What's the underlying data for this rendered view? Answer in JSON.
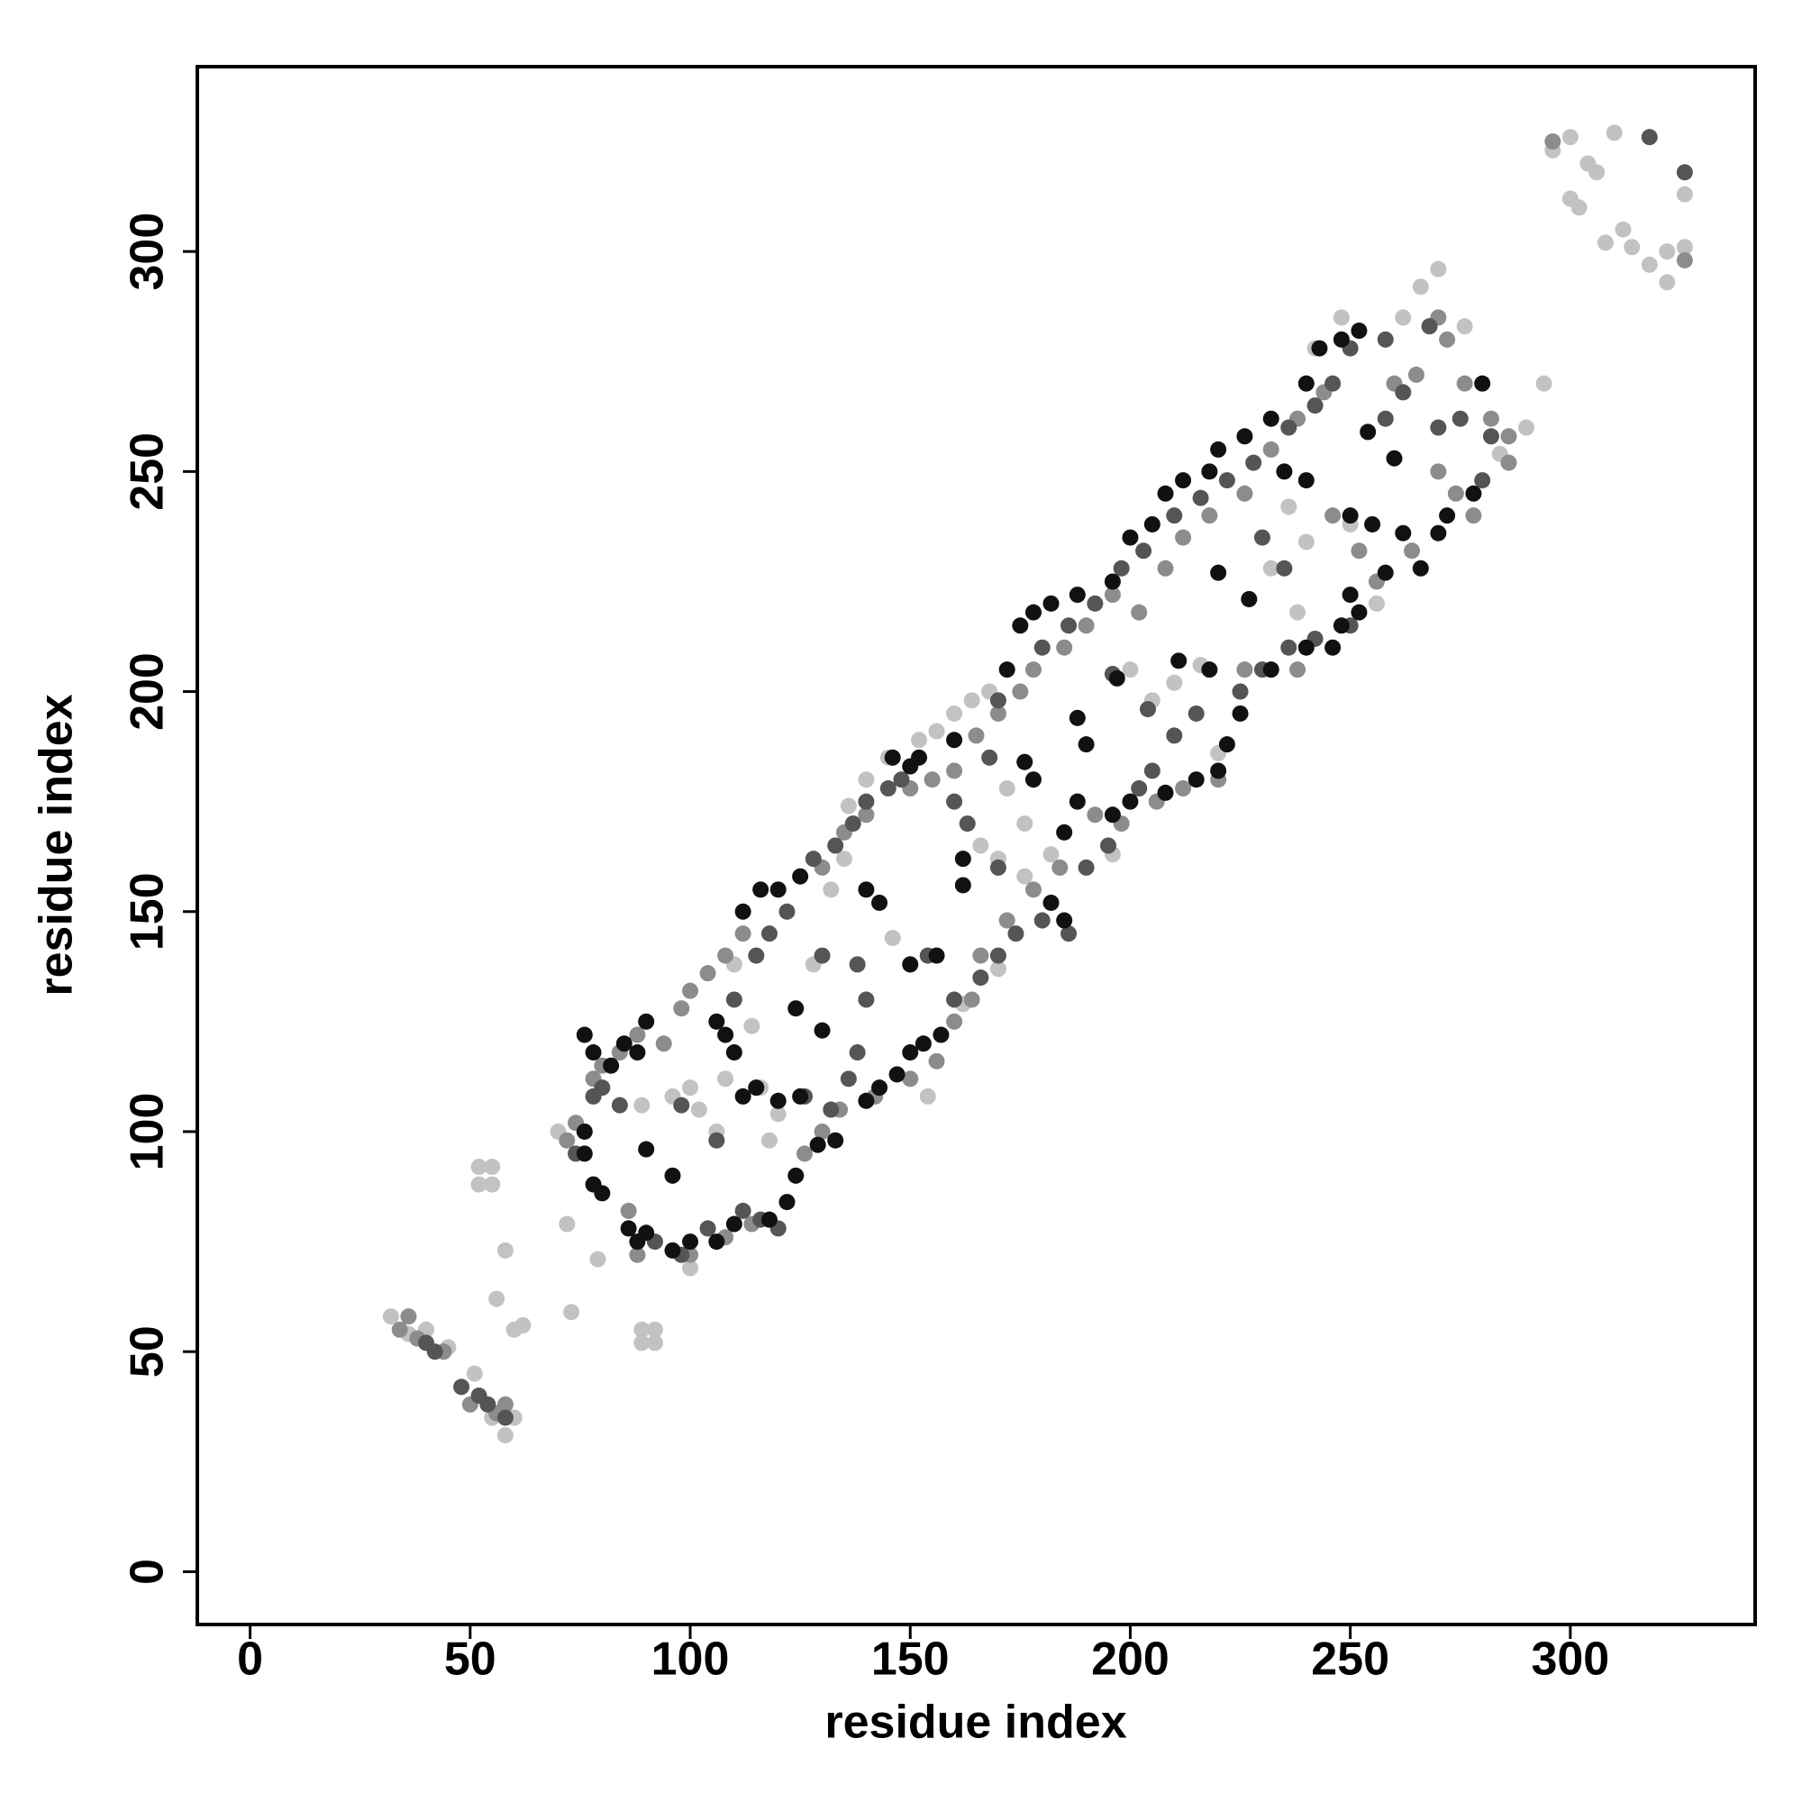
{
  "chart_data": {
    "type": "scatter",
    "xlabel": "residue index",
    "ylabel": "residue index",
    "xlim": [
      -12,
      342
    ],
    "ylim": [
      -12,
      342
    ],
    "xticks": [
      0,
      50,
      100,
      150,
      200,
      250,
      300
    ],
    "yticks": [
      0,
      50,
      100,
      150,
      200,
      250,
      300
    ],
    "grid": false,
    "series": [
      {
        "color": "#c2c2c2",
        "x": [
          32,
          36,
          40,
          45,
          51,
          55,
          58,
          60,
          52,
          55,
          52,
          55,
          89,
          92,
          89,
          92,
          56,
          58,
          62,
          60,
          70,
          72,
          73,
          79,
          89,
          96,
          100,
          102,
          106,
          108,
          116,
          120,
          128,
          132,
          135,
          136,
          140,
          145,
          152,
          156,
          160,
          164,
          168,
          172,
          176,
          166,
          170,
          200,
          205,
          210,
          216,
          232,
          236,
          240,
          250,
          256,
          262,
          266,
          270,
          276,
          284,
          290,
          294,
          300,
          302,
          304,
          306,
          308,
          312,
          314,
          318,
          322,
          326,
          326,
          296,
          300,
          310,
          322,
          100,
          118,
          114,
          110,
          146,
          154,
          162,
          170,
          176,
          182,
          196,
          220,
          238,
          242,
          248
        ],
        "values": [
          58,
          54,
          55,
          51,
          45,
          35,
          31,
          35,
          92,
          92,
          88,
          88,
          55,
          55,
          52,
          52,
          62,
          73,
          56,
          55,
          100,
          79,
          59,
          71,
          106,
          108,
          110,
          105,
          100,
          112,
          110,
          104,
          138,
          155,
          162,
          174,
          180,
          185,
          189,
          191,
          195,
          198,
          200,
          178,
          170,
          165,
          162,
          205,
          198,
          202,
          206,
          228,
          242,
          234,
          238,
          220,
          285,
          292,
          296,
          283,
          254,
          260,
          270,
          312,
          310,
          320,
          318,
          302,
          305,
          301,
          297,
          293,
          301,
          313,
          323,
          326,
          327,
          300,
          69,
          98,
          124,
          138,
          144,
          108,
          129,
          137,
          158,
          163,
          163,
          186,
          218,
          278,
          285
        ]
      },
      {
        "color": "#8c8c8c",
        "x": [
          34,
          36,
          38,
          44,
          50,
          56,
          58,
          296,
          326,
          72,
          74,
          78,
          80,
          84,
          88,
          94,
          98,
          100,
          104,
          108,
          112,
          86,
          88,
          100,
          108,
          114,
          126,
          130,
          134,
          142,
          150,
          156,
          160,
          164,
          130,
          135,
          140,
          150,
          155,
          160,
          165,
          170,
          175,
          178,
          185,
          190,
          196,
          202,
          208,
          212,
          218,
          226,
          232,
          238,
          244,
          260,
          265,
          270,
          272,
          276,
          282,
          286,
          192,
          198,
          206,
          212,
          220,
          226,
          238,
          256,
          264,
          286,
          166,
          172,
          178,
          184,
          246,
          252,
          270,
          274,
          278
        ],
        "values": [
          55,
          58,
          53,
          50,
          38,
          36,
          38,
          325,
          298,
          98,
          102,
          112,
          115,
          118,
          122,
          120,
          128,
          132,
          136,
          140,
          145,
          82,
          72,
          72,
          76,
          79,
          95,
          100,
          105,
          108,
          112,
          116,
          125,
          130,
          160,
          168,
          172,
          178,
          180,
          182,
          190,
          195,
          200,
          205,
          210,
          215,
          222,
          218,
          228,
          235,
          240,
          245,
          255,
          262,
          268,
          270,
          272,
          285,
          280,
          270,
          262,
          258,
          172,
          170,
          175,
          178,
          180,
          205,
          205,
          225,
          232,
          252,
          140,
          148,
          155,
          160,
          240,
          232,
          250,
          245,
          240
        ]
      },
      {
        "color": "#555555",
        "x": [
          40,
          42,
          48,
          52,
          54,
          58,
          318,
          326,
          74,
          78,
          80,
          84,
          92,
          98,
          104,
          112,
          116,
          120,
          126,
          132,
          136,
          138,
          138,
          130,
          110,
          115,
          118,
          122,
          128,
          133,
          137,
          140,
          145,
          148,
          154,
          160,
          166,
          170,
          174,
          180,
          186,
          190,
          195,
          202,
          205,
          210,
          215,
          225,
          230,
          236,
          242,
          250,
          160,
          163,
          168,
          170,
          180,
          186,
          192,
          198,
          203,
          210,
          216,
          222,
          228,
          236,
          242,
          246,
          258,
          262,
          270,
          275,
          280,
          282,
          268,
          250,
          258,
          230,
          235,
          204,
          196,
          170,
          140,
          106,
          98
        ],
        "values": [
          52,
          50,
          42,
          40,
          38,
          35,
          326,
          318,
          95,
          108,
          110,
          106,
          75,
          72,
          78,
          82,
          80,
          78,
          108,
          105,
          112,
          118,
          138,
          140,
          130,
          140,
          145,
          150,
          162,
          165,
          170,
          175,
          178,
          180,
          140,
          130,
          135,
          140,
          145,
          148,
          145,
          160,
          165,
          178,
          182,
          190,
          195,
          200,
          205,
          210,
          212,
          215,
          175,
          170,
          185,
          198,
          210,
          215,
          220,
          228,
          232,
          240,
          244,
          248,
          252,
          260,
          265,
          270,
          262,
          268,
          260,
          262,
          248,
          258,
          283,
          278,
          280,
          235,
          228,
          196,
          204,
          160,
          130,
          98,
          106
        ]
      },
      {
        "color": "#111111",
        "x": [
          76,
          78,
          82,
          85,
          88,
          90,
          76,
          76,
          78,
          80,
          86,
          88,
          90,
          96,
          100,
          106,
          110,
          118,
          122,
          124,
          110,
          108,
          106,
          112,
          116,
          120,
          125,
          112,
          115,
          120,
          125,
          129,
          133,
          140,
          143,
          147,
          150,
          153,
          157,
          140,
          143,
          146,
          150,
          152,
          160,
          176,
          178,
          172,
          175,
          178,
          182,
          188,
          196,
          200,
          205,
          208,
          212,
          218,
          220,
          226,
          232,
          240,
          243,
          248,
          252,
          235,
          240,
          250,
          255,
          258,
          262,
          266,
          270,
          272,
          278,
          280,
          90,
          96,
          124,
          130,
          162,
          162,
          190,
          188,
          197,
          220,
          227,
          254,
          260,
          150,
          156,
          182,
          185,
          196,
          200,
          208,
          215,
          220,
          222,
          225,
          232,
          240,
          248,
          250,
          185,
          188,
          211,
          218,
          246,
          252
        ],
        "values": [
          122,
          118,
          115,
          120,
          118,
          125,
          100,
          95,
          88,
          86,
          78,
          75,
          77,
          73,
          75,
          75,
          79,
          80,
          84,
          90,
          118,
          122,
          125,
          150,
          155,
          155,
          158,
          108,
          110,
          107,
          108,
          97,
          98,
          107,
          110,
          113,
          118,
          120,
          122,
          155,
          152,
          185,
          183,
          185,
          189,
          184,
          180,
          205,
          215,
          218,
          220,
          222,
          225,
          235,
          238,
          245,
          248,
          250,
          255,
          258,
          262,
          270,
          278,
          280,
          282,
          250,
          248,
          240,
          238,
          227,
          236,
          228,
          236,
          240,
          245,
          270,
          96,
          90,
          128,
          123,
          162,
          156,
          188,
          194,
          203,
          227,
          221,
          259,
          253,
          138,
          140,
          152,
          148,
          172,
          175,
          177,
          180,
          182,
          188,
          195,
          205,
          210,
          215,
          222,
          168,
          175,
          207,
          205,
          210,
          218
        ]
      }
    ]
  }
}
